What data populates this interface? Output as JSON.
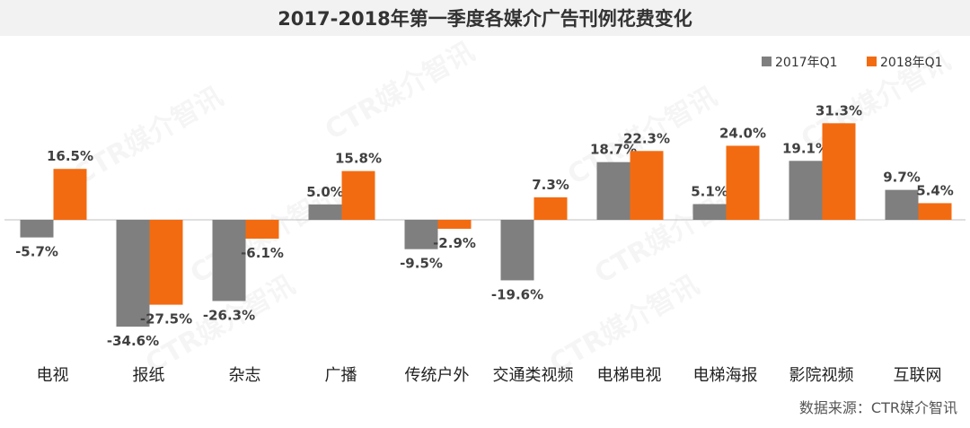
{
  "title": "2017-2018年第一季度各媒介广告刊例花费变化",
  "source": "数据来源：CTR媒介智讯",
  "watermark": "CTR媒介智讯",
  "colors": {
    "series_2017": "#7f7f7f",
    "series_2018": "#f36b10",
    "axis": "#bfbfbf",
    "label": "#404040"
  },
  "chart_data": {
    "type": "bar",
    "title": "2017-2018年第一季度各媒介广告刊例花费变化",
    "xlabel": "",
    "ylabel": "",
    "ylim": [
      -40,
      35
    ],
    "grid": false,
    "legend_position": "top-right",
    "categories": [
      "电视",
      "报纸",
      "杂志",
      "广播",
      "传统户外",
      "交通类视频",
      "电梯电视",
      "电梯海报",
      "影院视频",
      "互联网"
    ],
    "series": [
      {
        "name": "2017年Q1",
        "values": [
          -5.7,
          -34.6,
          -26.3,
          5.0,
          -9.5,
          -19.6,
          18.7,
          5.1,
          19.1,
          9.7
        ],
        "labels": [
          "-5.7%",
          "-34.6%",
          "-26.3%",
          "5.0%",
          "-9.5%",
          "-19.6%",
          "18.7%",
          "5.1%",
          "19.1%",
          "9.7%"
        ]
      },
      {
        "name": "2018年Q1",
        "values": [
          16.5,
          -27.5,
          -6.1,
          15.8,
          -2.9,
          7.3,
          22.3,
          24.0,
          31.3,
          5.4
        ],
        "labels": [
          "16.5%",
          "-27.5%",
          "-6.1%",
          "15.8%",
          "-2.9%",
          "7.3%",
          "22.3%",
          "24.0%",
          "31.3%",
          "5.4%"
        ]
      }
    ]
  }
}
